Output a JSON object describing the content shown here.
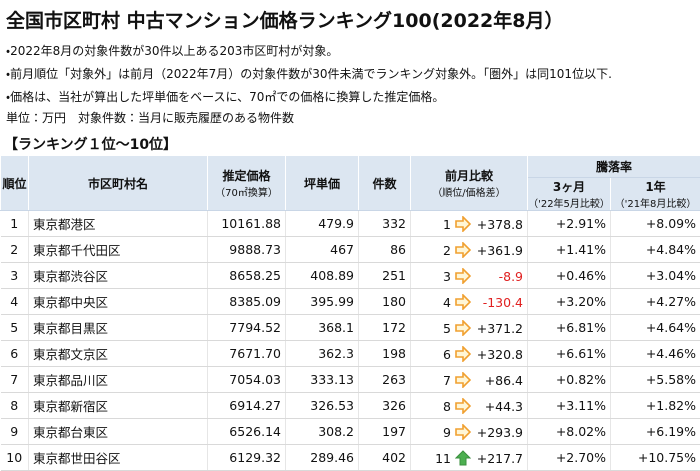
{
  "header": {
    "title": "全国市区町村 中古マンション価格ランキング100(2022年8月）",
    "notes": [
      "・2022年8月の対象件数が30件以上ある203市区町村が対象。",
      "・前月順位「対象外」は前月（2022年7月）の対象件数が30件未満でランキング対象外。「圏外」は同101位以下.",
      "・価格は、当社が算出した坪単価をベースに、70㎡での価格に換算した推定価格。",
      "単位：万円　対象件数：当月に販売履歴のある物件数"
    ],
    "section": "【ランキング１位〜10位】"
  },
  "table": {
    "columns": {
      "rank": "順位",
      "name": "市区町村名",
      "price": "推定価格",
      "price_sub": "（70㎡換算）",
      "tsubo": "坪単価",
      "count": "件数",
      "prev": "前月比較",
      "prev_sub": "（順位/価格差）",
      "change": "騰落率",
      "m3": "3ヶ月",
      "m3_sub": "（'22年5月比較）",
      "y1": "1年",
      "y1_sub": "（'21年8月比較）"
    },
    "rows": [
      [
        "1",
        "東京都港区",
        "10161.88",
        "479.9",
        "332",
        "1",
        "+378.8",
        "+2.91%",
        "+8.09%"
      ],
      [
        "2",
        "東京都千代田区",
        "9888.73",
        "467",
        "86",
        "2",
        "+361.9",
        "+1.41%",
        "+4.84%"
      ],
      [
        "3",
        "東京都渋谷区",
        "8658.25",
        "408.89",
        "251",
        "3",
        "-8.9",
        "+0.46%",
        "+3.04%"
      ],
      [
        "4",
        "東京都中央区",
        "8385.09",
        "395.99",
        "180",
        "4",
        "-130.4",
        "+3.20%",
        "+4.27%"
      ],
      [
        "5",
        "東京都目黒区",
        "7794.52",
        "368.1",
        "172",
        "5",
        "+371.2",
        "+6.81%",
        "+4.64%"
      ],
      [
        "6",
        "東京都文京区",
        "7671.70",
        "362.3",
        "198",
        "6",
        "+320.8",
        "+6.61%",
        "+4.46%"
      ],
      [
        "7",
        "東京都品川区",
        "7054.03",
        "333.13",
        "263",
        "7",
        "+86.4",
        "+0.82%",
        "+5.58%"
      ],
      [
        "8",
        "東京都新宿区",
        "6914.27",
        "326.53",
        "326",
        "8",
        "+44.3",
        "+3.11%",
        "+1.82%"
      ],
      [
        "9",
        "東京都台東区",
        "6526.14",
        "308.2",
        "197",
        "9",
        "+293.9",
        "+8.02%",
        "+6.19%"
      ],
      [
        "10",
        "東京都世田谷区",
        "6129.32",
        "289.46",
        "402",
        "11",
        "+217.7",
        "+2.70%",
        "+10.75%"
      ]
    ]
  }
}
